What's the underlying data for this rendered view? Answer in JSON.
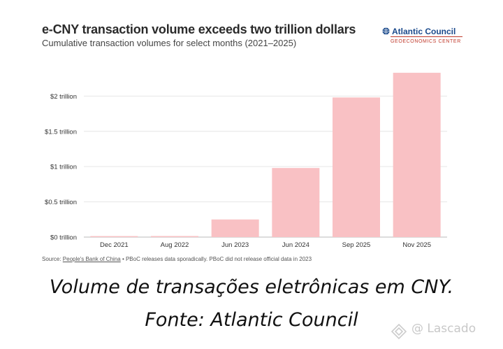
{
  "header": {
    "title": "e-CNY transaction volume exceeds two trillion dollars",
    "subtitle": "Cumulative transaction volumes for select months (2021–2025)"
  },
  "logo": {
    "name": "Atlantic Council",
    "sub": "GEOECONOMICS CENTER",
    "icon": "globe-icon"
  },
  "source": {
    "prefix": "Source: ",
    "link": "People's Bank of China",
    "rest": " • PBoC releases data sporadically. PBoC did not release official data in 2023"
  },
  "caption": {
    "line1": "Volume de transações eletrônicas em CNY.",
    "line2": "Fonte: Atlantic Council"
  },
  "watermark": {
    "text": "@ Lascado",
    "icon": "lascado-logo-icon"
  },
  "colors": {
    "bar": "#f9c1c4",
    "grid": "#e6e6e6",
    "axis": "#bbbbbb"
  },
  "chart_data": {
    "type": "bar",
    "title": "e-CNY transaction volume exceeds two trillion dollars",
    "subtitle": "Cumulative transaction volumes for select months (2021–2025)",
    "categories": [
      "Dec 2021",
      "Aug 2022",
      "Jun 2023",
      "Jun 2024",
      "Sep 2025",
      "Nov 2025"
    ],
    "values": [
      0.014,
      0.015,
      0.25,
      0.98,
      1.98,
      2.33
    ],
    "unit": "trillion USD",
    "yticks": [
      0,
      0.5,
      1,
      1.5,
      2
    ],
    "ytick_labels": [
      "$0 trillion",
      "$0.5 trillion",
      "$1 trillion",
      "$1.5 trillion",
      "$2 trillion"
    ],
    "ylim": [
      0,
      2.4
    ],
    "xlabel": "",
    "ylabel": "",
    "grid": true,
    "legend": "none"
  }
}
